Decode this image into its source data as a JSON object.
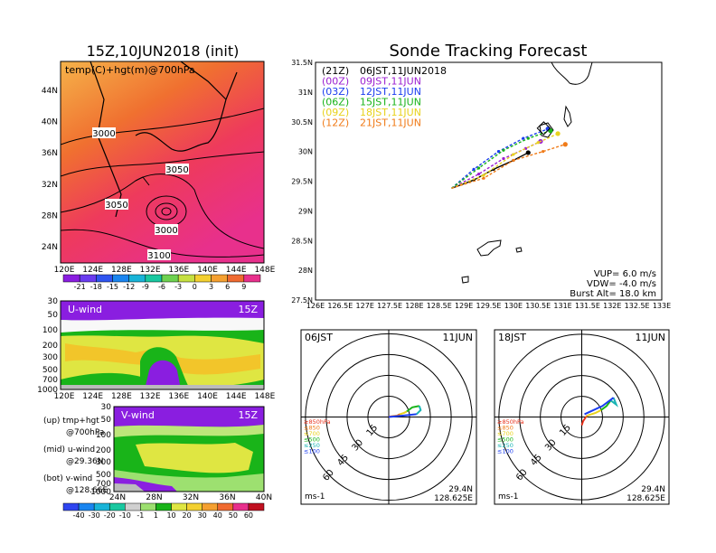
{
  "titles": {
    "init": "15Z,10JUN2018 (init)",
    "main": "Sonde Tracking Forecast"
  },
  "colors": {
    "purple": "#9b1fd0",
    "blue": "#1a3cf0",
    "green": "#19b419",
    "yellow": "#e8d21c",
    "orange": "#f07b18",
    "black": "#000000"
  },
  "left_panel": {
    "map": {
      "label": "temp(C)+hgt(m)@700hPa",
      "lat_labels": [
        "44N",
        "40N",
        "36N",
        "32N",
        "28N",
        "24N"
      ],
      "lon_labels": [
        "120E",
        "124E",
        "128E",
        "132E",
        "136E",
        "140E",
        "144E",
        "148E"
      ],
      "contour_labels": [
        "3000",
        "3050",
        "3050",
        "3000",
        "3100"
      ]
    },
    "temp_colorbar": [
      "-21",
      "-18",
      "-15",
      "-12",
      "-9",
      "-6",
      "-3",
      "0",
      "3",
      "6",
      "9"
    ],
    "uwind": {
      "label": "U-wind",
      "time": "15Z",
      "p_labels": [
        "30",
        "50",
        "100",
        "200",
        "300",
        "500",
        "700",
        "1000"
      ],
      "lon_labels": [
        "120E",
        "124E",
        "128E",
        "132E",
        "136E",
        "140E",
        "144E",
        "148E"
      ]
    },
    "vwind": {
      "label": "V-wind",
      "time": "15Z",
      "p_labels": [
        "30",
        "50",
        "100",
        "200",
        "300",
        "500",
        "700",
        "1000"
      ],
      "lat_labels": [
        "24N",
        "28N",
        "32N",
        "36N",
        "40N"
      ]
    },
    "notes": [
      {
        "line1": "(up) tmp+hgt",
        "line2": "@700hPa"
      },
      {
        "line1": "(mid) u-wind",
        "line2": "@29.36N"
      },
      {
        "line1": "(bot) v-wind",
        "line2": "@128.66E"
      }
    ],
    "wind_colorbar": [
      "-40",
      "-30",
      "-20",
      "-10",
      "-1",
      "1",
      "10",
      "20",
      "30",
      "40",
      "50",
      "60"
    ]
  },
  "track_map": {
    "legend": [
      {
        "tag": "(21Z)",
        "time": "06JST,11JUN2018",
        "color": "#000000"
      },
      {
        "tag": "(00Z)",
        "time": "09JST,11JUN",
        "color": "#9b1fd0"
      },
      {
        "tag": "(03Z)",
        "time": "12JST,11JUN",
        "color": "#1a3cf0"
      },
      {
        "tag": "(06Z)",
        "time": "15JST,11JUN",
        "color": "#19b419"
      },
      {
        "tag": "(09Z)",
        "time": "18JST,11JUN",
        "color": "#e8d21c"
      },
      {
        "tag": "(12Z)",
        "time": "21JST,11JUN",
        "color": "#f07b18"
      }
    ],
    "info": [
      "VUP=  6.0  m/s",
      "VDW= -4.0  m/s",
      "Burst Alt=  18.0  km"
    ],
    "lat_labels": [
      "31.5N",
      "31N",
      "30.5N",
      "30N",
      "29.5N",
      "29N",
      "28.5N",
      "28N",
      "27.5N"
    ],
    "lon_labels": [
      "126E",
      "126.5E",
      "127E",
      "127.5E",
      "128E",
      "128.5E",
      "129E",
      "129.5E",
      "130E",
      "130.5E",
      "131E",
      "131.5E",
      "132E",
      "132.5E",
      "133E"
    ]
  },
  "hodographs": [
    {
      "time": "06JST",
      "date": "11JUN",
      "lat": "29.4N",
      "lon": "128.625E",
      "unit": "ms-1",
      "rings": [
        "15",
        "30",
        "45",
        "60"
      ],
      "levels": [
        {
          "label": "≥850hPa",
          "color": "#e8321c"
        },
        {
          "label": "≤850",
          "color": "#f07b18"
        },
        {
          "label": "≤700",
          "color": "#e8d21c"
        },
        {
          "label": "≤500",
          "color": "#19b419"
        },
        {
          "label": "≤250",
          "color": "#19b4b4"
        },
        {
          "label": "≤100",
          "color": "#1a3cf0"
        }
      ]
    },
    {
      "time": "18JST",
      "date": "11JUN",
      "lat": "29.4N",
      "lon": "128.625E",
      "unit": "ms-1",
      "rings": [
        "15",
        "30",
        "45",
        "60"
      ],
      "levels": [
        {
          "label": "≥850hPa",
          "color": "#e8321c"
        },
        {
          "label": "≤850",
          "color": "#f07b18"
        },
        {
          "label": "≤700",
          "color": "#e8d21c"
        },
        {
          "label": "≤500",
          "color": "#19b419"
        },
        {
          "label": "≤250",
          "color": "#19b4b4"
        },
        {
          "label": "≤100",
          "color": "#1a3cf0"
        }
      ]
    }
  ],
  "chart_data": [
    {
      "type": "line",
      "title": "Sonde Tracking Forecast",
      "xlim": [
        126,
        133
      ],
      "ylim": [
        27.5,
        31.5
      ],
      "grid": false,
      "legend": "top-left",
      "series": [
        {
          "name": "(21Z) 06JST,11JUN2018",
          "color": "#000000",
          "x": [
            128.75,
            129.2,
            129.6,
            130.0,
            130.3
          ],
          "y": [
            29.38,
            29.52,
            29.7,
            29.85,
            29.98
          ]
        },
        {
          "name": "(00Z) 09JST,11JUN",
          "color": "#9b1fd0",
          "x": [
            128.75,
            129.3,
            129.8,
            130.25,
            130.55
          ],
          "y": [
            29.38,
            29.62,
            29.88,
            30.05,
            30.17
          ]
        },
        {
          "name": "(03Z) 12JST,11JUN",
          "color": "#1a3cf0",
          "x": [
            128.75,
            129.2,
            129.7,
            130.2,
            130.7
          ],
          "y": [
            29.38,
            29.7,
            30.0,
            30.22,
            30.38
          ]
        },
        {
          "name": "(06Z) 15JST,11JUN",
          "color": "#19b419",
          "x": [
            128.75,
            129.3,
            129.8,
            130.3,
            130.75
          ],
          "y": [
            29.38,
            29.72,
            30.02,
            30.22,
            30.35
          ]
        },
        {
          "name": "(09Z) 18JST,11JUN",
          "color": "#e8d21c",
          "x": [
            128.75,
            129.4,
            130.0,
            130.5,
            130.9
          ],
          "y": [
            29.38,
            29.6,
            29.95,
            30.15,
            30.3
          ]
        },
        {
          "name": "(12Z) 21JST,11JUN",
          "color": "#f07b18",
          "x": [
            128.75,
            129.4,
            130.0,
            130.6,
            131.05
          ],
          "y": [
            29.38,
            29.55,
            29.85,
            30.0,
            30.12
          ]
        }
      ]
    },
    {
      "type": "line",
      "title": "06JST 11JUN",
      "xlabel": "ms-1",
      "series": [
        {
          "name": "≥850hPa",
          "color": "#e8321c",
          "x": [
            0,
            2
          ],
          "y": [
            0,
            0.5
          ]
        },
        {
          "name": "≤850",
          "color": "#f07b18",
          "x": [
            2,
            6,
            8
          ],
          "y": [
            0.5,
            1,
            2
          ]
        },
        {
          "name": "≤700",
          "color": "#e8d21c",
          "x": [
            8,
            11,
            13
          ],
          "y": [
            2,
            3,
            4
          ]
        },
        {
          "name": "≤500",
          "color": "#19b419",
          "x": [
            13,
            17,
            22
          ],
          "y": [
            4,
            7,
            8
          ]
        },
        {
          "name": "≤250",
          "color": "#19b4b4",
          "x": [
            22,
            23,
            20
          ],
          "y": [
            8,
            5,
            2
          ]
        },
        {
          "name": "≤100",
          "color": "#1a3cf0",
          "x": [
            20,
            10,
            0
          ],
          "y": [
            2,
            1,
            0
          ]
        }
      ]
    },
    {
      "type": "line",
      "title": "18JST 11JUN",
      "xlabel": "ms-1",
      "series": [
        {
          "name": "≥850hPa",
          "color": "#e8321c",
          "x": [
            0,
            1,
            3
          ],
          "y": [
            -6,
            -3,
            0
          ]
        },
        {
          "name": "≤850",
          "color": "#f07b18",
          "x": [
            3,
            4
          ],
          "y": [
            0,
            1
          ]
        },
        {
          "name": "≤700",
          "color": "#e8d21c",
          "x": [
            4,
            10,
            14
          ],
          "y": [
            1,
            3,
            5
          ]
        },
        {
          "name": "≤500",
          "color": "#19b419",
          "x": [
            14,
            18,
            21
          ],
          "y": [
            5,
            8,
            12
          ]
        },
        {
          "name": "≤250",
          "color": "#19b4b4",
          "x": [
            21,
            25,
            23
          ],
          "y": [
            12,
            9,
            14
          ]
        },
        {
          "name": "≤100",
          "color": "#1a3cf0",
          "x": [
            23,
            15,
            2
          ],
          "y": [
            14,
            8,
            2
          ]
        }
      ]
    }
  ]
}
